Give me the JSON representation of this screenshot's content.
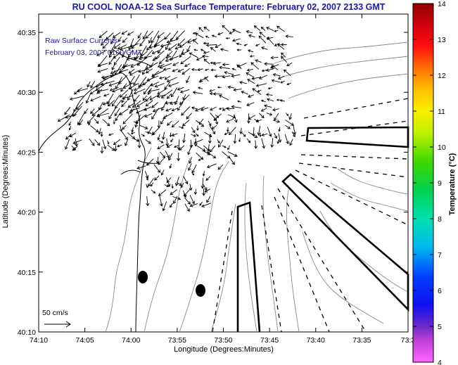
{
  "title": "RU COOL  NOAA-12  Sea Surface Temperature:  February 02, 2007 2133 GMT",
  "overlay": {
    "line1": "Raw Surface Currents",
    "line2": "February 03, 2007 0100 GMT"
  },
  "axes": {
    "xlabel": "Longitude (Degrees:Minutes)",
    "ylabel": "Latitude (Degrees:Minutes)",
    "x_ticks": [
      "74:10",
      "74:05",
      "74:00",
      "73:55",
      "73:50",
      "73:45",
      "73:40",
      "73:35",
      "73:3"
    ],
    "y_ticks": [
      "40:35",
      "40:30",
      "40:25",
      "40:20",
      "40:15",
      "40:10"
    ]
  },
  "scale_arrow": {
    "label": "50 cm/s"
  },
  "colorbar": {
    "label": "Temperature (°C)",
    "ticks": [
      "14",
      "13",
      "12",
      "11",
      "10",
      "9",
      "8",
      "7",
      "6",
      "5",
      "4"
    ]
  }
}
